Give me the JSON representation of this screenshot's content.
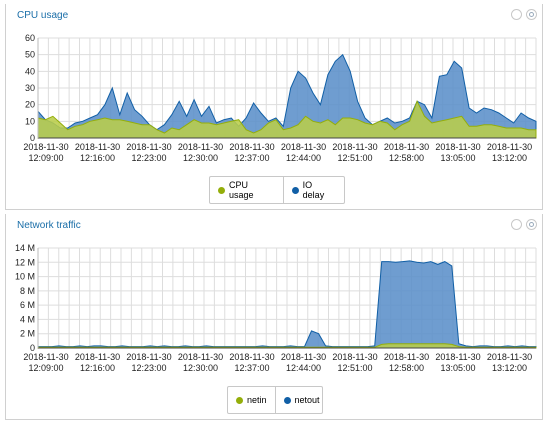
{
  "colors": {
    "title": "#1a6ea8",
    "grid": "#dddddd",
    "series_green": "#94ae0a",
    "series_blue": "#115fa6",
    "fill_green": "#b9cd4a",
    "fill_blue": "#5b8fc9"
  },
  "panels": [
    {
      "title": "CPU usage",
      "header_icons": [
        "circle-icon",
        "gear-icon"
      ],
      "legend": [
        "CPU usage",
        "IO delay"
      ]
    },
    {
      "title": "Network traffic",
      "header_icons": [
        "circle-icon",
        "gear-icon"
      ],
      "legend": [
        "netin",
        "netout"
      ]
    }
  ],
  "chart_data": [
    {
      "type": "area",
      "title": "CPU usage",
      "xlabel": "",
      "ylabel": "",
      "ylim": [
        0,
        60
      ],
      "yticks": [
        "0",
        "10",
        "20",
        "30",
        "40",
        "50",
        "60"
      ],
      "xticks": [
        [
          "2018-11-30",
          "12:09:00"
        ],
        [
          "2018-11-30",
          "12:16:00"
        ],
        [
          "2018-11-30",
          "12:23:00"
        ],
        [
          "2018-11-30",
          "12:30:00"
        ],
        [
          "2018-11-30",
          "12:37:00"
        ],
        [
          "2018-11-30",
          "12:44:00"
        ],
        [
          "2018-11-30",
          "12:51:00"
        ],
        [
          "2018-11-30",
          "12:58:00"
        ],
        [
          "2018-11-30",
          "13:05:00"
        ],
        [
          "2018-11-30",
          "13:12:00"
        ]
      ],
      "grid": true,
      "legend_position": "bottom",
      "series": [
        {
          "name": "IO delay",
          "values": [
            16,
            11,
            9,
            6,
            6,
            9,
            10,
            12,
            14,
            20,
            30,
            14,
            27,
            17,
            13,
            8,
            5,
            8,
            14,
            22,
            13,
            23,
            13,
            19,
            9,
            11,
            12,
            7,
            12,
            21,
            15,
            10,
            12,
            7,
            30,
            40,
            36,
            27,
            20,
            38,
            46,
            50,
            40,
            22,
            12,
            8,
            10,
            12,
            9,
            10,
            12,
            22,
            20,
            12,
            37,
            38,
            46,
            42,
            18,
            15,
            18,
            17,
            15,
            12,
            9,
            15,
            12,
            10
          ]
        },
        {
          "name": "CPU usage",
          "values": [
            12,
            11,
            13,
            9,
            5,
            7,
            8,
            10,
            11,
            12,
            11,
            11,
            10,
            9,
            8,
            8,
            5,
            3,
            6,
            5,
            8,
            11,
            9,
            9,
            8,
            9,
            10,
            11,
            5,
            3,
            5,
            9,
            11,
            5,
            6,
            8,
            13,
            10,
            9,
            11,
            8,
            12,
            12,
            11,
            9,
            8,
            10,
            9,
            5,
            8,
            10,
            22,
            13,
            9,
            10,
            11,
            12,
            13,
            7,
            7,
            8,
            8,
            7,
            6,
            6,
            6,
            5,
            5
          ]
        }
      ]
    },
    {
      "type": "area",
      "title": "Network traffic",
      "xlabel": "",
      "ylabel": "",
      "ylim": [
        0,
        14
      ],
      "yticks": [
        "0",
        "2 M",
        "4 M",
        "6 M",
        "8 M",
        "10 M",
        "12 M",
        "14 M"
      ],
      "xticks": [
        [
          "2018-11-30",
          "12:09:00"
        ],
        [
          "2018-11-30",
          "12:16:00"
        ],
        [
          "2018-11-30",
          "12:23:00"
        ],
        [
          "2018-11-30",
          "12:30:00"
        ],
        [
          "2018-11-30",
          "12:37:00"
        ],
        [
          "2018-11-30",
          "12:44:00"
        ],
        [
          "2018-11-30",
          "12:51:00"
        ],
        [
          "2018-11-30",
          "12:58:00"
        ],
        [
          "2018-11-30",
          "13:05:00"
        ],
        [
          "2018-11-30",
          "13:12:00"
        ]
      ],
      "grid": true,
      "legend_position": "bottom",
      "series": [
        {
          "name": "netout",
          "values": [
            0.2,
            0.2,
            0.2,
            0.3,
            0.2,
            0.2,
            0.3,
            0.2,
            0.3,
            0.3,
            0.2,
            0.2,
            0.3,
            0.2,
            0.2,
            0.2,
            0.3,
            0.2,
            0.3,
            0.2,
            0.2,
            0.3,
            0.2,
            0.2,
            0.3,
            0.2,
            0.2,
            0.2,
            0.2,
            0.2,
            0.2,
            0.2,
            0.3,
            0.2,
            0.2,
            0.2,
            0.3,
            0.2,
            0.2,
            2.4,
            2.0,
            0.3,
            0.2,
            0.2,
            0.2,
            0.2,
            0.2,
            0.2,
            0.3,
            12.1,
            12.1,
            12.0,
            12.1,
            12.2,
            12.0,
            11.9,
            12.1,
            11.7,
            12.1,
            11.5,
            0.6,
            0.3,
            0.2,
            0.3,
            0.3,
            0.2,
            0.2,
            0.3,
            0.2,
            0.3,
            0.2,
            0.2
          ]
        },
        {
          "name": "netin",
          "values": [
            0.1,
            0.1,
            0.1,
            0.1,
            0.1,
            0.1,
            0.1,
            0.1,
            0.1,
            0.1,
            0.1,
            0.1,
            0.1,
            0.1,
            0.1,
            0.1,
            0.1,
            0.1,
            0.1,
            0.1,
            0.1,
            0.1,
            0.1,
            0.1,
            0.1,
            0.1,
            0.1,
            0.1,
            0.1,
            0.1,
            0.1,
            0.1,
            0.1,
            0.1,
            0.1,
            0.1,
            0.1,
            0.1,
            0.1,
            0.1,
            0.1,
            0.1,
            0.1,
            0.1,
            0.1,
            0.1,
            0.1,
            0.1,
            0.1,
            0.5,
            0.6,
            0.6,
            0.6,
            0.6,
            0.6,
            0.6,
            0.6,
            0.6,
            0.6,
            0.5,
            0.2,
            0.1,
            0.1,
            0.1,
            0.1,
            0.1,
            0.1,
            0.1,
            0.1,
            0.1,
            0.1,
            0.1
          ]
        }
      ]
    }
  ]
}
